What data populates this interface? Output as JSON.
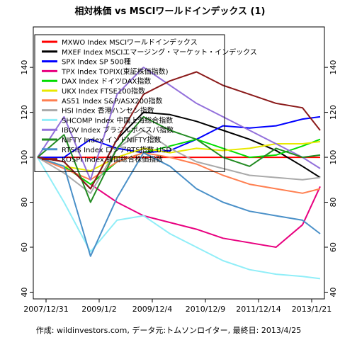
{
  "chart_data": {
    "type": "line",
    "title": "相対株価 vs MSCIワールドインデックス (1)",
    "footer": "作成: wildinvestors.com, データ元:トムソンロイター, 最終日: 2013/4/25",
    "x_tick_labels": [
      "2007/12/31",
      "2009/1/2",
      "2009/12/4",
      "2010/12/9",
      "2011/12/14",
      "2013/1/21"
    ],
    "y_ticks": [
      40,
      60,
      80,
      100,
      120,
      140
    ],
    "ylim": [
      37,
      158
    ],
    "x": [
      0,
      6,
      12,
      18,
      24,
      30,
      36,
      42,
      48,
      54,
      60,
      64
    ],
    "series": [
      {
        "name": "MXWO Index MSCIワールドインデックス",
        "color": "#ff0000",
        "values": [
          100,
          100,
          100,
          100,
          100,
          100,
          100,
          100,
          100,
          100,
          100,
          100
        ]
      },
      {
        "name": "MXEF Index MSCIエマージング・マーケット・インデックス",
        "color": "#000000",
        "values": [
          100,
          98,
          86,
          108,
          120,
          119,
          116,
          112,
          108,
          103,
          96,
          91
        ]
      },
      {
        "name": "SPX Index SP 500種",
        "color": "#0000ff",
        "values": [
          100,
          100,
          108,
          104,
          102,
          103,
          108,
          114,
          113,
          114,
          117,
          118
        ]
      },
      {
        "name": "TPX Index TOPIX(東証株価指数)",
        "color": "#e8007f",
        "values": [
          100,
          96,
          88,
          80,
          74,
          71,
          68,
          64,
          62,
          60,
          70,
          87
        ]
      },
      {
        "name": "DAX Index ドイツDAX指数",
        "color": "#00dd00",
        "values": [
          100,
          96,
          88,
          98,
          102,
          105,
          108,
          104,
          100,
          101,
          105,
          108
        ]
      },
      {
        "name": "UKX Index FTSE100指数",
        "color": "#e8e800",
        "values": [
          100,
          96,
          94,
          100,
          104,
          102,
          104,
          103,
          104,
          106,
          106,
          107
        ]
      },
      {
        "name": "AS51 Index S&P/ASX200指数",
        "color": "#ff7f50",
        "values": [
          100,
          95,
          90,
          98,
          102,
          100,
          97,
          92,
          88,
          86,
          84,
          86
        ]
      },
      {
        "name": "HSI Index 香港ハンセン指数",
        "color": "#aaaaaa",
        "values": [
          100,
          93,
          84,
          104,
          112,
          104,
          98,
          95,
          92,
          91,
          90,
          91
        ]
      },
      {
        "name": "SHCOMP Index 中国上海総合指数",
        "color": "#90eef8",
        "values": [
          100,
          80,
          58,
          72,
          74,
          66,
          60,
          54,
          50,
          48,
          47,
          46
        ]
      },
      {
        "name": "IBOV Index ブラジルボベスパ指数",
        "color": "#9370db",
        "values": [
          100,
          118,
          90,
          128,
          140,
          132,
          124,
          118,
          112,
          106,
          100,
          95
        ]
      },
      {
        "name": "NIFTY Index インドNIFTY指数",
        "color": "#228b22",
        "values": [
          100,
          110,
          80,
          104,
          118,
          112,
          108,
          100,
          96,
          104,
          100,
          101
        ]
      },
      {
        "name": "RTSI$ Index ロシアRTS指数 USD",
        "color": "#4a90c8",
        "values": [
          100,
          96,
          56,
          82,
          102,
          96,
          86,
          80,
          76,
          74,
          72,
          66
        ]
      },
      {
        "name": "KOSPI Index 韓国総合株価指数",
        "color": "#8b1a1a",
        "values": [
          100,
          98,
          86,
          108,
          128,
          134,
          138,
          132,
          128,
          124,
          122,
          112
        ]
      }
    ]
  }
}
